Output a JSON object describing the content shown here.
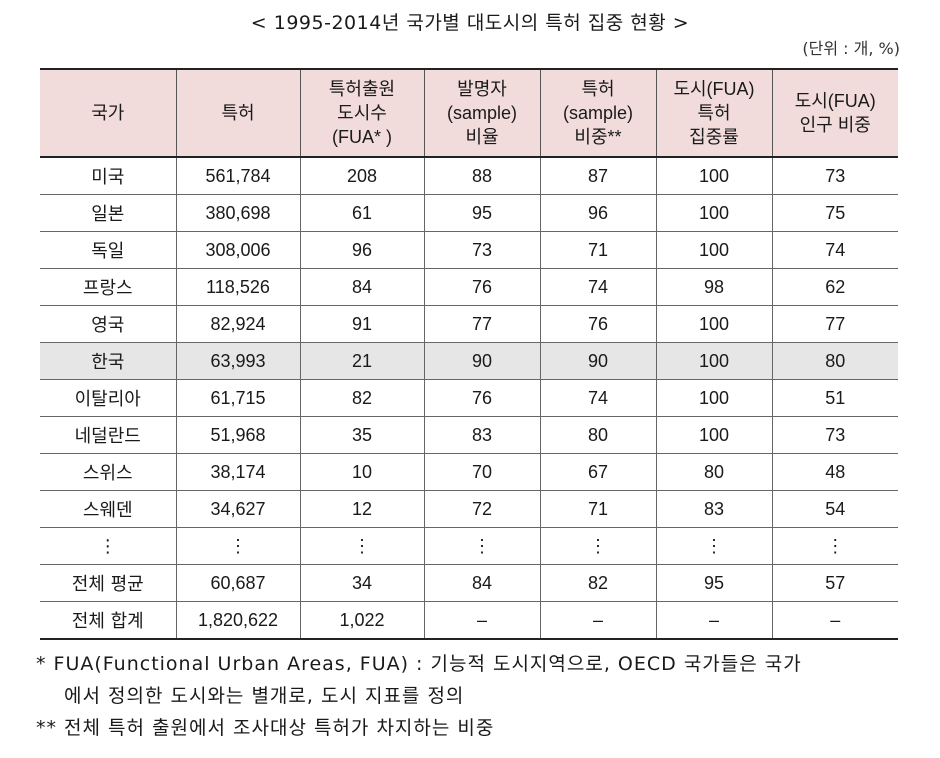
{
  "title": "< 1995-2014년 국가별 대도시의 특허 집중 현황 >",
  "unit": "(단위 : 개, %)",
  "headers": [
    [
      "국가"
    ],
    [
      "특허"
    ],
    [
      "특허출원",
      "도시수",
      "(FUA* )"
    ],
    [
      "발명자",
      "(sample)",
      "비율"
    ],
    [
      "특허",
      "(sample)",
      "비중**"
    ],
    [
      "도시(FUA)",
      "특허",
      "집중률"
    ],
    [
      "도시(FUA)",
      "인구 비중"
    ]
  ],
  "rows": [
    [
      "미국",
      "561,784",
      "208",
      "88",
      "87",
      "100",
      "73"
    ],
    [
      "일본",
      "380,698",
      "61",
      "95",
      "96",
      "100",
      "75"
    ],
    [
      "독일",
      "308,006",
      "96",
      "73",
      "71",
      "100",
      "74"
    ],
    [
      "프랑스",
      "118,526",
      "84",
      "76",
      "74",
      "98",
      "62"
    ],
    [
      "영국",
      "82,924",
      "91",
      "77",
      "76",
      "100",
      "77"
    ],
    [
      "한국",
      "63,993",
      "21",
      "90",
      "90",
      "100",
      "80"
    ],
    [
      "이탈리아",
      "61,715",
      "82",
      "76",
      "74",
      "100",
      "51"
    ],
    [
      "네덜란드",
      "51,968",
      "35",
      "83",
      "80",
      "100",
      "73"
    ],
    [
      "스위스",
      "38,174",
      "10",
      "70",
      "67",
      "80",
      "48"
    ],
    [
      "스웨덴",
      "34,627",
      "12",
      "72",
      "71",
      "83",
      "54"
    ],
    [
      "⋮",
      "⋮",
      "⋮",
      "⋮",
      "⋮",
      "⋮",
      "⋮"
    ],
    [
      "전체 평균",
      "60,687",
      "34",
      "84",
      "82",
      "95",
      "57"
    ],
    [
      "전체 합계",
      "1,820,622",
      "1,022",
      "–",
      "–",
      "–",
      "–"
    ]
  ],
  "highlight_row": "한국",
  "highlight_color": "#e6e6e6",
  "header_color": "#f2dcdb",
  "footnotes": [
    "* FUA(Functional Urban Areas, FUA) : 기능적 도시지역으로, OECD 국가들은 국가",
    "에서 정의한 도시와는 별개로, 도시 지표를 정의",
    "** 전체 특허 출원에서 조사대상 특허가 차지하는 비중"
  ]
}
